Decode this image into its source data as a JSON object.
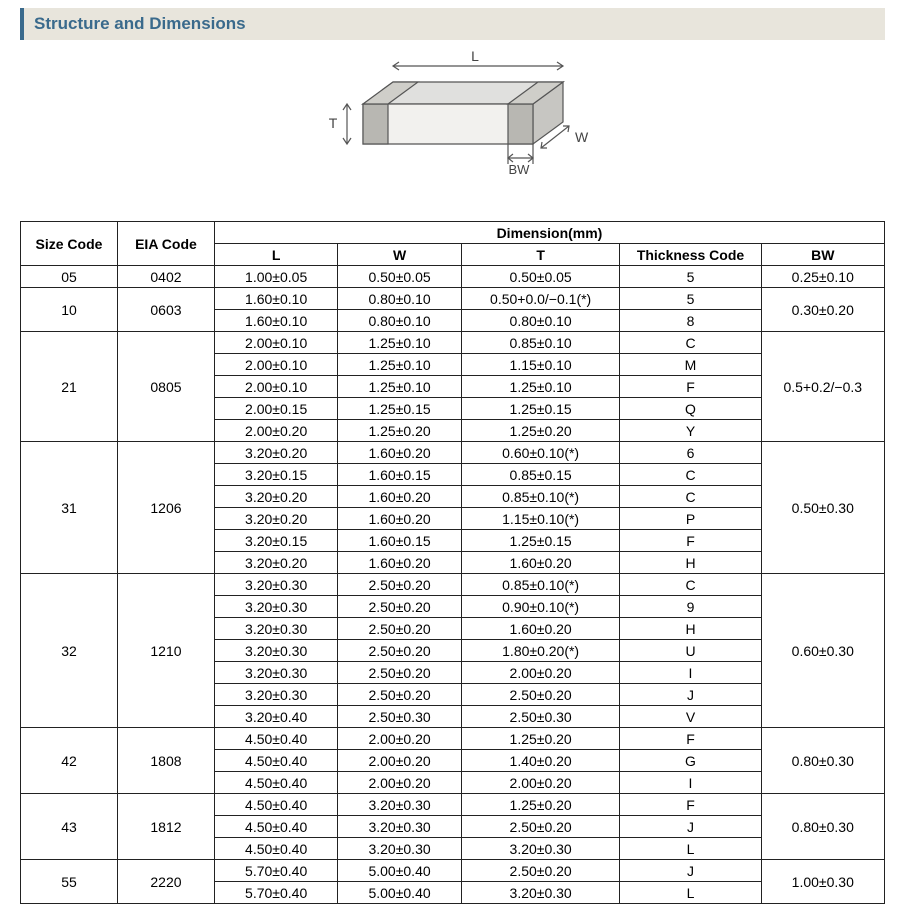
{
  "header": {
    "title": "Structure and Dimensions"
  },
  "diagram": {
    "labels": {
      "L": "L",
      "W": "W",
      "T": "T",
      "BW": "BW"
    },
    "stroke": "#555555",
    "fill_top": "#e0e0de",
    "fill_side": "#c7c6c2",
    "fill_front": "#f2f1ee",
    "electrode_fill": "#b8b7b2"
  },
  "table": {
    "headers": {
      "size_code": "Size Code",
      "eia_code": "EIA Code",
      "dimension_group": "Dimension(mm)",
      "L": "L",
      "W": "W",
      "T": "T",
      "thickness_code": "Thickness Code",
      "BW": "BW"
    },
    "groups": [
      {
        "size_code": "05",
        "eia_code": "0402",
        "bw": "0.25±0.10",
        "rows": [
          {
            "L": "1.00±0.05",
            "W": "0.50±0.05",
            "T": "0.50±0.05",
            "TC": "5"
          }
        ]
      },
      {
        "size_code": "10",
        "eia_code": "0603",
        "bw": "0.30±0.20",
        "rows": [
          {
            "L": "1.60±0.10",
            "W": "0.80±0.10",
            "T": "0.50+0.0/−0.1(*)",
            "TC": "5"
          },
          {
            "L": "1.60±0.10",
            "W": "0.80±0.10",
            "T": "0.80±0.10",
            "TC": "8"
          }
        ]
      },
      {
        "size_code": "21",
        "eia_code": "0805",
        "bw": "0.5+0.2/−0.3",
        "rows": [
          {
            "L": "2.00±0.10",
            "W": "1.25±0.10",
            "T": "0.85±0.10",
            "TC": "C"
          },
          {
            "L": "2.00±0.10",
            "W": "1.25±0.10",
            "T": "1.15±0.10",
            "TC": "M"
          },
          {
            "L": "2.00±0.10",
            "W": "1.25±0.10",
            "T": "1.25±0.10",
            "TC": "F"
          },
          {
            "L": "2.00±0.15",
            "W": "1.25±0.15",
            "T": "1.25±0.15",
            "TC": "Q"
          },
          {
            "L": "2.00±0.20",
            "W": "1.25±0.20",
            "T": "1.25±0.20",
            "TC": "Y"
          }
        ]
      },
      {
        "size_code": "31",
        "eia_code": "1206",
        "bw": "0.50±0.30",
        "rows": [
          {
            "L": "3.20±0.20",
            "W": "1.60±0.20",
            "T": "0.60±0.10(*)",
            "TC": "6"
          },
          {
            "L": "3.20±0.15",
            "W": "1.60±0.15",
            "T": "0.85±0.15",
            "TC": "C"
          },
          {
            "L": "3.20±0.20",
            "W": "1.60±0.20",
            "T": "0.85±0.10(*)",
            "TC": "C"
          },
          {
            "L": "3.20±0.20",
            "W": "1.60±0.20",
            "T": "1.15±0.10(*)",
            "TC": "P"
          },
          {
            "L": "3.20±0.15",
            "W": "1.60±0.15",
            "T": "1.25±0.15",
            "TC": "F"
          },
          {
            "L": "3.20±0.20",
            "W": "1.60±0.20",
            "T": "1.60±0.20",
            "TC": "H"
          }
        ]
      },
      {
        "size_code": "32",
        "eia_code": "1210",
        "bw": "0.60±0.30",
        "rows": [
          {
            "L": "3.20±0.30",
            "W": "2.50±0.20",
            "T": "0.85±0.10(*)",
            "TC": "C"
          },
          {
            "L": "3.20±0.30",
            "W": "2.50±0.20",
            "T": "0.90±0.10(*)",
            "TC": "9"
          },
          {
            "L": "3.20±0.30",
            "W": "2.50±0.20",
            "T": "1.60±0.20",
            "TC": "H"
          },
          {
            "L": "3.20±0.30",
            "W": "2.50±0.20",
            "T": "1.80±0.20(*)",
            "TC": "U"
          },
          {
            "L": "3.20±0.30",
            "W": "2.50±0.20",
            "T": "2.00±0.20",
            "TC": "I"
          },
          {
            "L": "3.20±0.30",
            "W": "2.50±0.20",
            "T": "2.50±0.20",
            "TC": "J"
          },
          {
            "L": "3.20±0.40",
            "W": "2.50±0.30",
            "T": "2.50±0.30",
            "TC": "V"
          }
        ]
      },
      {
        "size_code": "42",
        "eia_code": "1808",
        "bw": "0.80±0.30",
        "rows": [
          {
            "L": "4.50±0.40",
            "W": "2.00±0.20",
            "T": "1.25±0.20",
            "TC": "F"
          },
          {
            "L": "4.50±0.40",
            "W": "2.00±0.20",
            "T": "1.40±0.20",
            "TC": "G"
          },
          {
            "L": "4.50±0.40",
            "W": "2.00±0.20",
            "T": "2.00±0.20",
            "TC": "I"
          }
        ]
      },
      {
        "size_code": "43",
        "eia_code": "1812",
        "bw": "0.80±0.30",
        "rows": [
          {
            "L": "4.50±0.40",
            "W": "3.20±0.30",
            "T": "1.25±0.20",
            "TC": "F"
          },
          {
            "L": "4.50±0.40",
            "W": "3.20±0.30",
            "T": "2.50±0.20",
            "TC": "J"
          },
          {
            "L": "4.50±0.40",
            "W": "3.20±0.30",
            "T": "3.20±0.30",
            "TC": "L"
          }
        ]
      },
      {
        "size_code": "55",
        "eia_code": "2220",
        "bw": "1.00±0.30",
        "rows": [
          {
            "L": "5.70±0.40",
            "W": "5.00±0.40",
            "T": "2.50±0.20",
            "TC": "J"
          },
          {
            "L": "5.70±0.40",
            "W": "5.00±0.40",
            "T": "3.20±0.30",
            "TC": "L"
          }
        ]
      }
    ]
  }
}
